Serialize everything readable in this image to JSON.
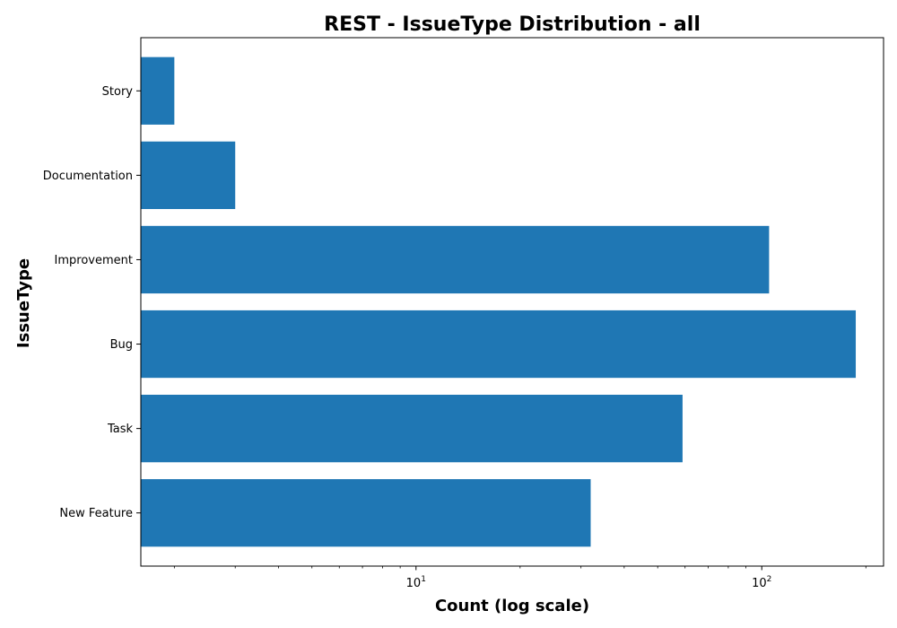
{
  "chart_data": {
    "type": "bar",
    "orientation": "horizontal",
    "title": "REST - IssueType Distribution - all",
    "xlabel": "Count (log scale)",
    "ylabel": "IssueType",
    "x_scale": "log",
    "xlim": [
      1.6,
      225
    ],
    "categories": [
      "New Feature",
      "Task",
      "Bug",
      "Improvement",
      "Documentation",
      "Story"
    ],
    "values": [
      32,
      59,
      187,
      105,
      3,
      2
    ],
    "x_major_ticks": [
      {
        "base": "10",
        "exp": "1",
        "value": 10
      },
      {
        "base": "10",
        "exp": "2",
        "value": 100
      }
    ],
    "bar_color": "#1f77b4",
    "grid": false,
    "legend": false
  }
}
